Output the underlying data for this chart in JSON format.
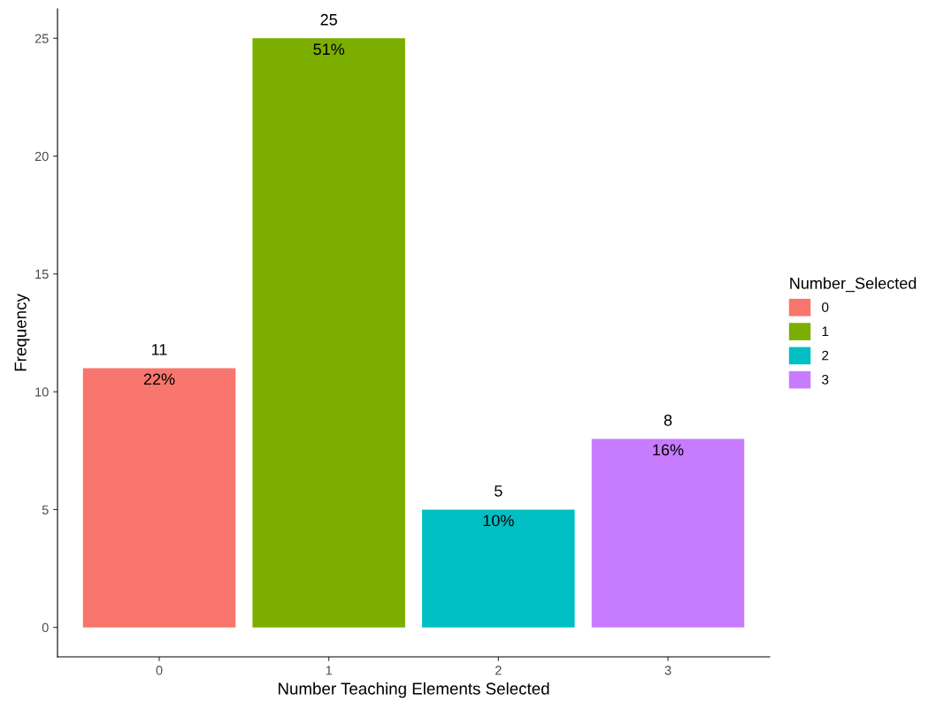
{
  "chart_data": {
    "type": "bar",
    "xlabel": "Number Teaching Elements Selected",
    "ylabel": "Frequency",
    "categories": [
      "0",
      "1",
      "2",
      "3"
    ],
    "series": [
      {
        "name": "0",
        "color": "#f8766d",
        "values": [
          11,
          null,
          null,
          null
        ]
      },
      {
        "name": "1",
        "color": "#7cae00",
        "values": [
          null,
          25,
          null,
          null
        ]
      },
      {
        "name": "2",
        "color": "#00bfc4",
        "values": [
          null,
          null,
          5,
          null
        ]
      },
      {
        "name": "3",
        "color": "#c77cff",
        "values": [
          null,
          null,
          null,
          8
        ]
      }
    ],
    "ylim": [
      -1.25,
      26.25
    ],
    "yticks": [
      0,
      5,
      10,
      15,
      20,
      25
    ],
    "data_labels": true,
    "annotations": [
      {
        "text": "22%",
        "x": "0",
        "y": 11
      },
      {
        "text": "51%",
        "x": "1",
        "y": 25
      },
      {
        "text": "10%",
        "x": "2",
        "y": 5
      },
      {
        "text": "16%",
        "x": "3",
        "y": 8
      }
    ],
    "legend": "right",
    "legend_title": "Number_Selected",
    "grid": false
  }
}
